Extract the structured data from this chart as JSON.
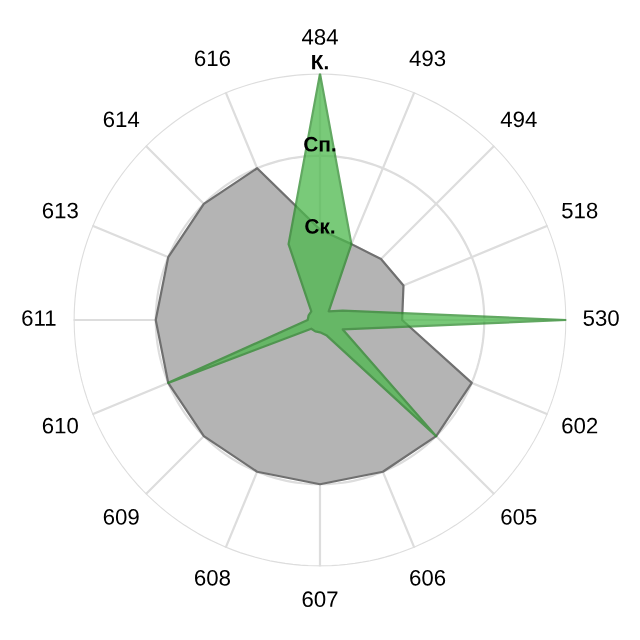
{
  "chart_data": {
    "type": "radar",
    "categories": [
      "484",
      "493",
      "494",
      "518",
      "530",
      "602",
      "605",
      "606",
      "607",
      "608",
      "609",
      "610",
      "611",
      "613",
      "614",
      "616"
    ],
    "series": [
      {
        "color": "#b4b4b4",
        "values": [
          1.1,
          1.0,
          1.05,
          1.1,
          1.0,
          2.0,
          2.0,
          2.0,
          2.0,
          2.0,
          2.0,
          2.0,
          2.0,
          2.0,
          2.0,
          2.0
        ]
      },
      {
        "color": "#4cb84c",
        "values": [
          3.0,
          1.0,
          0.15,
          0.3,
          3.0,
          0.3,
          2.0,
          0.2,
          0.15,
          0.15,
          0.15,
          2.0,
          0.15,
          0.15,
          0.15,
          1.0
        ]
      }
    ],
    "ylim": [
      0,
      3
    ],
    "yticks": [
      {
        "value": 1,
        "label": "Ск."
      },
      {
        "value": 2,
        "label": "Сп."
      },
      {
        "value": 3,
        "label": "К."
      }
    ],
    "grid": true
  }
}
